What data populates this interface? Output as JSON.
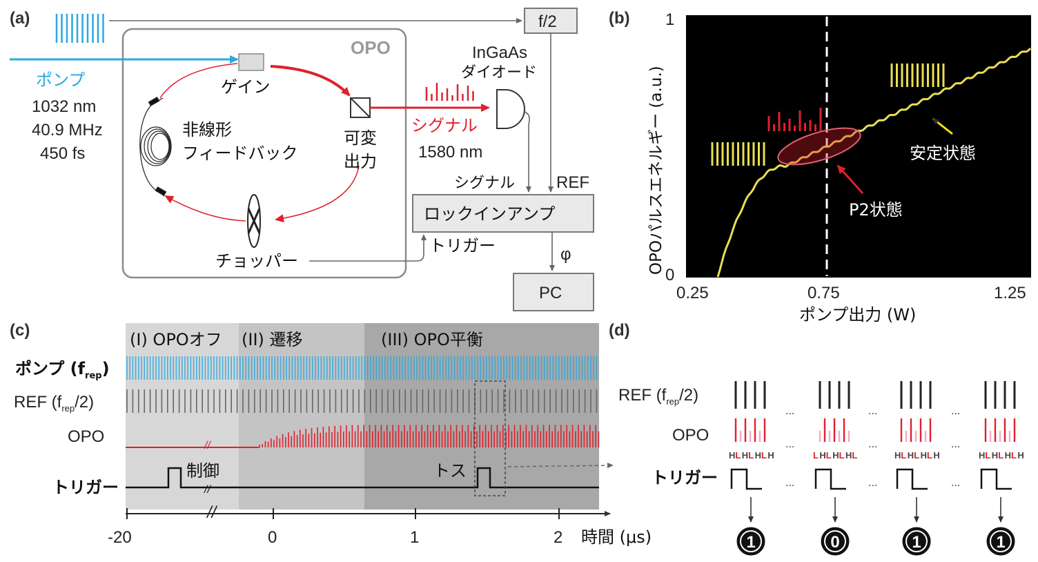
{
  "colors": {
    "pump": "#29a8e0",
    "signal": "#e0202c",
    "yellow": "#e8e050",
    "plot_bg": "#000000",
    "box_fill": "#e9e9e9"
  },
  "panel_a": {
    "label": "(a)",
    "opo_label": "OPO",
    "f2_label": "f/2",
    "pump": {
      "title": "ポンプ",
      "wavelength": "1032 nm",
      "rate": "40.9 MHz",
      "duration": "450 fs"
    },
    "gain_label": "ゲイン",
    "feedback_label_1": "非線形",
    "feedback_label_2": "フィードバック",
    "output_label_1": "可変",
    "output_label_2": "出力",
    "detector_label_1": "InGaAs",
    "detector_label_2": "ダイオード",
    "signal_title": "シグナル",
    "signal_wavelength": "1580 nm",
    "lockin_signal_in": "シグナル",
    "lockin_ref_in": "REF",
    "lockin_label": "ロックインアンプ",
    "trigger_label": "トリガー",
    "chopper_label": "チョッパー",
    "phi_label": "φ",
    "pc_label": "PC"
  },
  "panel_b": {
    "label": "(b)",
    "ylabel": "OPOパルスエネルギー (a.u.)",
    "xlabel": "ポンプ出力 (W)",
    "x_ticks": [
      "0.25",
      "0.75",
      "1.25"
    ],
    "y_ticks": [
      "1",
      "0"
    ],
    "annotation_stable": "安定状態",
    "annotation_p2": "P2状態"
  },
  "panel_c": {
    "label": "(c)",
    "phase_1": "(I) OPOオフ",
    "phase_2": "(II) 遷移",
    "phase_3": "(III) OPO平衡",
    "row_pump": "ポンプ (f",
    "row_pump_sub": "rep",
    "row_pump_end": ")",
    "row_ref": "REF (f",
    "row_ref_sub": "rep",
    "row_ref_end": "/2)",
    "row_opo": "OPO",
    "row_trigger": "トリガー",
    "control_label": "制御",
    "toss_label": "トス",
    "time_label": "時間 (μs)",
    "time_ticks": [
      "-20",
      "0",
      "1",
      "2"
    ],
    "break_mark": "//"
  },
  "panel_d": {
    "label": "(d)",
    "row_ref": "REF (f",
    "row_ref_sub": "rep",
    "row_ref_end": "/2)",
    "row_opo": "OPO",
    "row_trigger": "トリガー",
    "ellipsis": "...",
    "groups": [
      {
        "hl": [
          "H",
          "L",
          "H",
          "L",
          "H",
          "L",
          "H"
        ],
        "bit": "1"
      },
      {
        "hl": [
          "L",
          "H",
          "L",
          "H",
          "L",
          "H",
          "L"
        ],
        "bit": "0"
      },
      {
        "hl": [
          "H",
          "L",
          "H",
          "L",
          "H",
          "L",
          "H"
        ],
        "bit": "1"
      },
      {
        "hl": [
          "H",
          "L",
          "H",
          "L",
          "H",
          "L",
          "H"
        ],
        "bit": "1"
      }
    ]
  }
}
